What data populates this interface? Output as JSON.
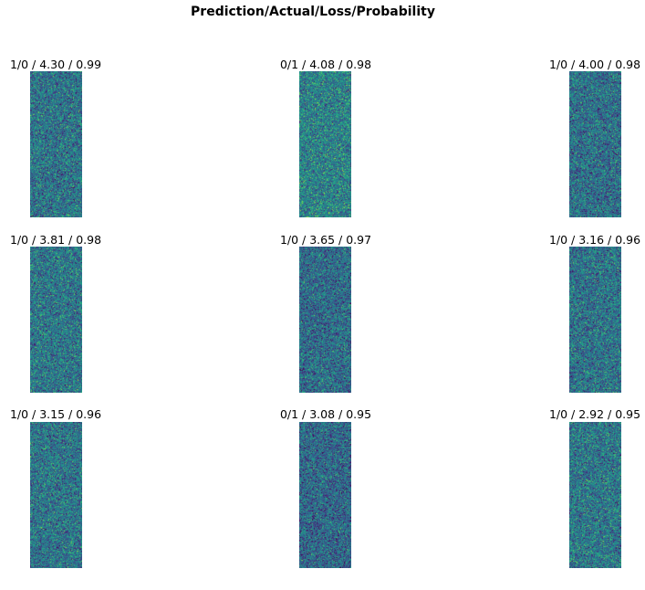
{
  "chart_data": {
    "type": "heatmap",
    "title": "Prediction/Actual/Loss/Probability",
    "colormap": "viridis",
    "colors": {
      "low": "#3b528b",
      "mid": "#21908d",
      "high": "#5ec962",
      "peak": "#aadc32"
    },
    "panels": [
      {
        "label": "1/0 / 4.30 / 0.99",
        "prediction": 1,
        "actual": 0,
        "loss": 4.3,
        "probability": 0.99
      },
      {
        "label": "0/1 / 4.08 / 0.98",
        "prediction": 0,
        "actual": 1,
        "loss": 4.08,
        "probability": 0.98
      },
      {
        "label": "1/0 / 4.00 / 0.98",
        "prediction": 1,
        "actual": 0,
        "loss": 4.0,
        "probability": 0.98
      },
      {
        "label": "1/0 / 3.81 / 0.98",
        "prediction": 1,
        "actual": 0,
        "loss": 3.81,
        "probability": 0.98
      },
      {
        "label": "1/0 / 3.65 / 0.97",
        "prediction": 1,
        "actual": 0,
        "loss": 3.65,
        "probability": 0.97
      },
      {
        "label": "1/0 / 3.16 / 0.96",
        "prediction": 1,
        "actual": 0,
        "loss": 3.16,
        "probability": 0.96
      },
      {
        "label": "1/0 / 3.15 / 0.96",
        "prediction": 1,
        "actual": 0,
        "loss": 3.15,
        "probability": 0.96
      },
      {
        "label": "0/1 / 3.08 / 0.95",
        "prediction": 0,
        "actual": 1,
        "loss": 3.08,
        "probability": 0.95
      },
      {
        "label": "1/0 / 2.92 / 0.95",
        "prediction": 1,
        "actual": 0,
        "loss": 2.92,
        "probability": 0.95
      }
    ]
  }
}
